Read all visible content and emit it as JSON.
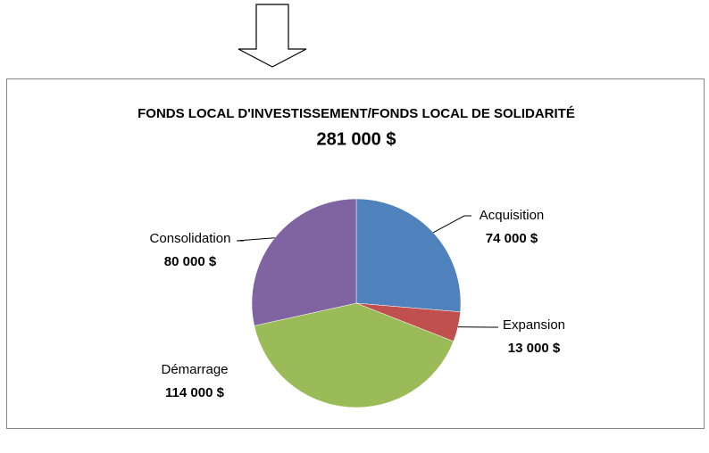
{
  "chart_data": {
    "type": "pie",
    "title": "FONDS LOCAL D'INVESTISSEMENT/FONDS LOCAL DE SOLIDARITÉ",
    "subtitle": "281 000 $",
    "categories": [
      "Acquisition",
      "Expansion",
      "Démarrage",
      "Consolidation"
    ],
    "values": [
      74000,
      13000,
      114000,
      80000
    ],
    "value_labels": [
      "74 000 $",
      "13 000 $",
      "114 000 $",
      "80 000 $"
    ],
    "colors": [
      "#4f81bd",
      "#c0504d",
      "#9bbb59",
      "#8064a2"
    ]
  }
}
